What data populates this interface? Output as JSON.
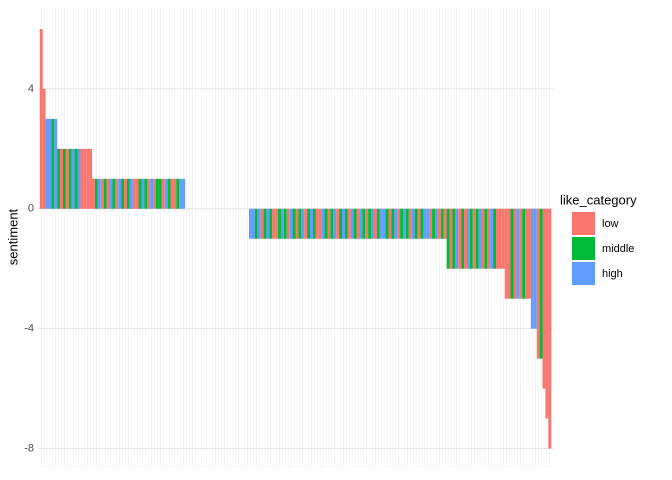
{
  "chart_data": {
    "type": "bar",
    "y_label": "sentiment",
    "legend_title": "like_category",
    "series": [
      {
        "name": "low",
        "color": "#f8766d"
      },
      {
        "name": "middle",
        "color": "#00ba38"
      },
      {
        "name": "high",
        "color": "#619cff"
      }
    ],
    "ylim": [
      -8.65,
      6.7
    ],
    "yticks": [
      -8,
      -4,
      0,
      4
    ],
    "grid": true,
    "values": [
      6,
      4,
      3,
      3,
      3,
      3,
      2,
      2,
      2,
      2,
      2,
      2,
      2,
      2,
      2,
      2,
      2,
      2,
      1,
      1,
      1,
      1,
      1,
      1,
      1,
      1,
      1,
      1,
      1,
      1,
      1,
      1,
      1,
      1,
      1,
      1,
      1,
      1,
      1,
      1,
      1,
      1,
      1,
      1,
      1,
      1,
      1,
      1,
      1,
      1,
      0,
      0,
      0,
      0,
      0,
      0,
      0,
      0,
      0,
      0,
      0,
      0,
      0,
      0,
      0,
      0,
      0,
      0,
      0,
      0,
      0,
      0,
      -1,
      -1,
      -1,
      -1,
      -1,
      -1,
      -1,
      -1,
      -1,
      -1,
      -1,
      -1,
      -1,
      -1,
      -1,
      -1,
      -1,
      -1,
      -1,
      -1,
      -1,
      -1,
      -1,
      -1,
      -1,
      -1,
      -1,
      -1,
      -1,
      -1,
      -1,
      -1,
      -1,
      -1,
      -1,
      -1,
      -1,
      -1,
      -1,
      -1,
      -1,
      -1,
      -1,
      -1,
      -1,
      -1,
      -1,
      -1,
      -1,
      -1,
      -1,
      -1,
      -1,
      -1,
      -1,
      -1,
      -1,
      -1,
      -1,
      -1,
      -1,
      -1,
      -1,
      -1,
      -1,
      -1,
      -1,
      -1,
      -2,
      -2,
      -2,
      -2,
      -2,
      -2,
      -2,
      -2,
      -2,
      -2,
      -2,
      -2,
      -2,
      -2,
      -2,
      -2,
      -2,
      -2,
      -2,
      -2,
      -3,
      -3,
      -3,
      -3,
      -3,
      -3,
      -3,
      -3,
      -3,
      -4,
      -4,
      -5,
      -5,
      -6,
      -7,
      -8
    ],
    "groups": [
      "low",
      "low",
      "high",
      "high",
      "middle",
      "high",
      "middle",
      "low",
      "middle",
      "low",
      "middle",
      "high",
      "middle",
      "high",
      "low",
      "low",
      "low",
      "low",
      "low",
      "middle",
      "high",
      "low",
      "middle",
      "low",
      "high",
      "middle",
      "low",
      "high",
      "middle",
      "low",
      "middle",
      "high",
      "low",
      "low",
      "middle",
      "high",
      "middle",
      "low",
      "high",
      "low",
      "middle",
      "middle",
      "low",
      "high",
      "middle",
      "low",
      "low",
      "middle",
      "high",
      "high",
      "low",
      "high",
      "middle",
      "low",
      "middle",
      "high",
      "low",
      "middle",
      "high",
      "low",
      "middle",
      "low",
      "high",
      "middle",
      "low",
      "middle",
      "high",
      "low",
      "middle",
      "high",
      "low",
      "middle",
      "high",
      "high",
      "middle",
      "high",
      "low",
      "middle",
      "high",
      "middle",
      "low",
      "low",
      "middle",
      "high",
      "middle",
      "low",
      "high",
      "middle",
      "low",
      "middle",
      "high",
      "low",
      "middle",
      "high",
      "middle",
      "low",
      "low",
      "high",
      "middle",
      "low",
      "middle",
      "high",
      "low",
      "middle",
      "high",
      "middle",
      "low",
      "high",
      "middle",
      "low",
      "high",
      "middle",
      "low",
      "middle",
      "high",
      "low",
      "middle",
      "high",
      "high",
      "middle",
      "low",
      "middle",
      "high",
      "low",
      "middle",
      "high",
      "middle",
      "low",
      "high",
      "middle",
      "low",
      "middle",
      "high",
      "high",
      "low",
      "middle",
      "high",
      "low",
      "middle",
      "low",
      "middle",
      "low",
      "middle",
      "high",
      "low",
      "middle",
      "low",
      "high",
      "middle",
      "low",
      "middle",
      "high",
      "low",
      "middle",
      "low",
      "high",
      "middle",
      "low",
      "low",
      "low",
      "low",
      "low",
      "middle",
      "low",
      "high",
      "low",
      "middle",
      "low",
      "low",
      "high",
      "high",
      "low",
      "middle",
      "low",
      "low",
      "low"
    ]
  }
}
